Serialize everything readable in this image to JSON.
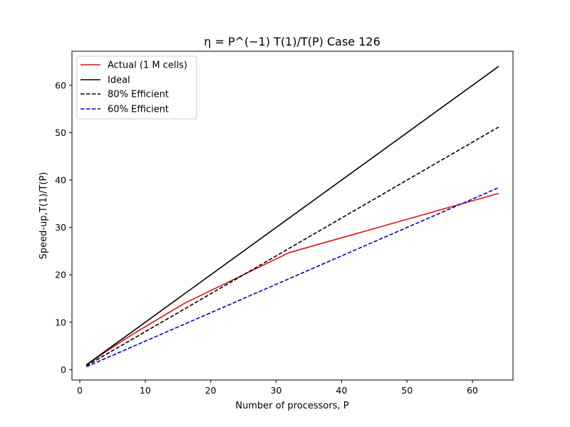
{
  "chart_data": {
    "type": "line",
    "title": "η = P^(−1) T(1)/T(P) Case 126",
    "xlabel": "Number of processors, P",
    "ylabel": "Speed-up,T(1)/T(P)",
    "xlim": [
      -1.2,
      66.2
    ],
    "ylim": [
      -2.2,
      67.2
    ],
    "xticks": [
      0,
      10,
      20,
      30,
      40,
      50,
      60
    ],
    "yticks": [
      0,
      10,
      20,
      30,
      40,
      50,
      60
    ],
    "grid": false,
    "legend_position": "top-left",
    "series": [
      {
        "name": "Actual (1 M cells)",
        "color": "#dd1111",
        "dash": "solid",
        "x": [
          1,
          2,
          4,
          8,
          16,
          32,
          64
        ],
        "y": [
          1.0,
          1.9,
          3.8,
          7.4,
          14.0,
          24.7,
          37.2
        ]
      },
      {
        "name": "Ideal",
        "color": "#000000",
        "dash": "solid",
        "x": [
          1,
          64
        ],
        "y": [
          1,
          64
        ]
      },
      {
        "name": "80% Efficient",
        "color": "#000000",
        "dash": "dashed",
        "x": [
          1,
          64
        ],
        "y": [
          0.8,
          51.2
        ]
      },
      {
        "name": "60% Efficient",
        "color": "#0000cc",
        "dash": "dashed",
        "x": [
          1,
          64
        ],
        "y": [
          0.6,
          38.4
        ]
      }
    ]
  }
}
